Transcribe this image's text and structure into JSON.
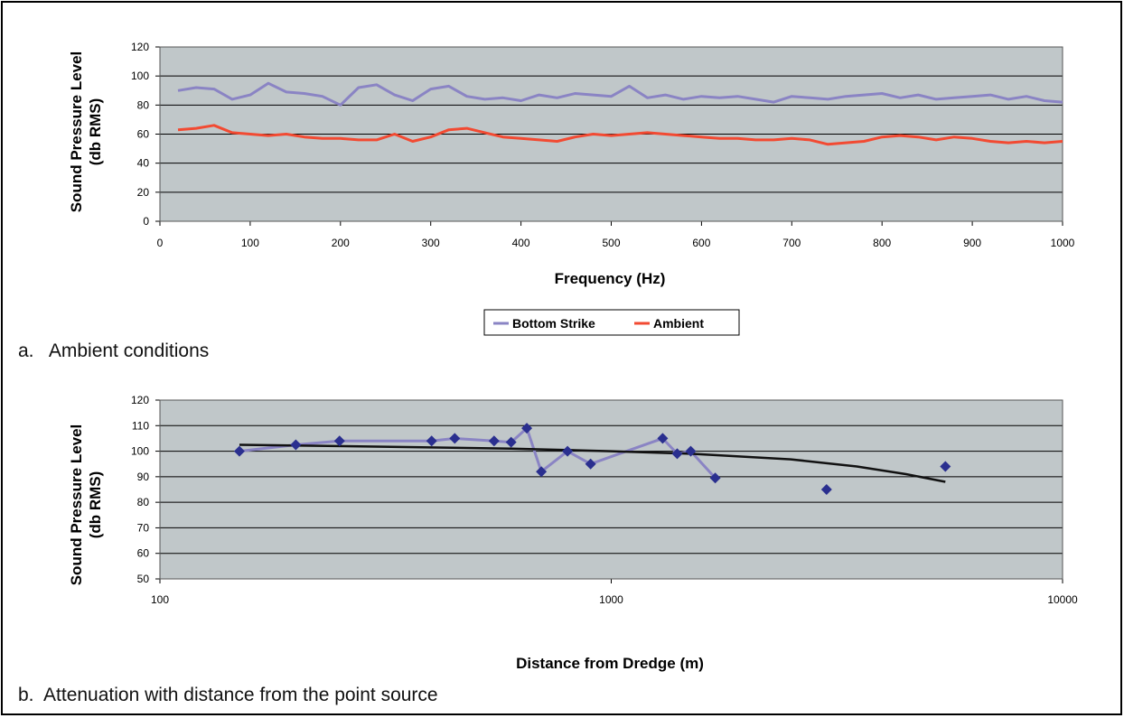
{
  "captions": {
    "a": "a.   Ambient conditions",
    "b": "b.  Attenuation with distance from the point source"
  },
  "colors": {
    "plot_bg": "#c0c7c9",
    "grid": "#000000",
    "bottom_strike": "#8a84c4",
    "ambient": "#f24a32",
    "points": "#2a2f8f",
    "fit_line": "#111111"
  },
  "chart_data": [
    {
      "type": "line",
      "xlabel": "Frequency (Hz)",
      "ylabel_line1": "Sound Pressure Level",
      "ylabel_line2": "(db RMS)",
      "xlim": [
        0,
        1000
      ],
      "ylim": [
        0,
        120
      ],
      "xticks": [
        "0",
        "100",
        "200",
        "300",
        "400",
        "500",
        "600",
        "700",
        "800",
        "900",
        "1000"
      ],
      "yticks": [
        "0",
        "20",
        "40",
        "60",
        "80",
        "100",
        "120"
      ],
      "grid": true,
      "legend": "bottom-center",
      "series": [
        {
          "name": "Bottom Strike",
          "x": [
            20,
            40,
            60,
            80,
            100,
            120,
            140,
            160,
            180,
            200,
            220,
            240,
            260,
            280,
            300,
            320,
            340,
            360,
            380,
            400,
            420,
            440,
            460,
            480,
            500,
            520,
            540,
            560,
            580,
            600,
            620,
            640,
            660,
            680,
            700,
            720,
            740,
            760,
            780,
            800,
            820,
            840,
            860,
            880,
            900,
            920,
            940,
            960,
            980,
            1000
          ],
          "values": [
            90,
            92,
            91,
            84,
            87,
            95,
            89,
            88,
            86,
            80,
            92,
            94,
            87,
            83,
            91,
            93,
            86,
            84,
            85,
            83,
            87,
            85,
            88,
            87,
            86,
            93,
            85,
            87,
            84,
            86,
            85,
            86,
            84,
            82,
            86,
            85,
            84,
            86,
            87,
            88,
            85,
            87,
            84,
            85,
            86,
            87,
            84,
            86,
            83,
            82
          ]
        },
        {
          "name": "Ambient",
          "x": [
            20,
            40,
            60,
            80,
            100,
            120,
            140,
            160,
            180,
            200,
            220,
            240,
            260,
            280,
            300,
            320,
            340,
            360,
            380,
            400,
            420,
            440,
            460,
            480,
            500,
            520,
            540,
            560,
            580,
            600,
            620,
            640,
            660,
            680,
            700,
            720,
            740,
            760,
            780,
            800,
            820,
            840,
            860,
            880,
            900,
            920,
            940,
            960,
            980,
            1000
          ],
          "values": [
            63,
            64,
            66,
            61,
            60,
            59,
            60,
            58,
            57,
            57,
            56,
            56,
            60,
            55,
            58,
            63,
            64,
            61,
            58,
            57,
            56,
            55,
            58,
            60,
            59,
            60,
            61,
            60,
            59,
            58,
            57,
            57,
            56,
            56,
            57,
            56,
            53,
            54,
            55,
            58,
            59,
            58,
            56,
            58,
            57,
            55,
            54,
            55,
            54,
            55
          ]
        }
      ]
    },
    {
      "type": "scatter",
      "xlabel": "Distance from Dredge (m)",
      "ylabel_line1": "Sound Pressure Level",
      "ylabel_line2": "(db RMS)",
      "xscale": "log",
      "xlim": [
        100,
        10000
      ],
      "ylim": [
        50,
        120
      ],
      "xticks": [
        "100",
        "1000",
        "10000"
      ],
      "yticks": [
        "50",
        "60",
        "70",
        "80",
        "90",
        "100",
        "110",
        "120"
      ],
      "grid": true,
      "points": {
        "x": [
          150,
          200,
          250,
          400,
          450,
          550,
          600,
          650,
          700,
          800,
          900,
          1300,
          1400,
          1500,
          1700,
          3000,
          5500
        ],
        "y": [
          100,
          102.5,
          104,
          104,
          105,
          104,
          103.5,
          109,
          92,
          100,
          95,
          105,
          99,
          100,
          89.5,
          85,
          94
        ]
      },
      "connected_segment": {
        "x": [
          150,
          200,
          250,
          400,
          450,
          550,
          600,
          650,
          700,
          800,
          900,
          1300,
          1400,
          1500,
          1700
        ],
        "y": [
          100,
          102.5,
          104,
          104,
          105,
          104,
          103.5,
          109,
          92,
          100,
          95,
          105,
          99,
          100,
          89.5
        ]
      },
      "trend": {
        "x": [
          150,
          300,
          600,
          1000,
          1500,
          2500,
          3500,
          4500,
          5500
        ],
        "y": [
          102.5,
          101.8,
          101,
          100,
          99,
          96.8,
          94,
          91,
          88
        ]
      }
    }
  ]
}
